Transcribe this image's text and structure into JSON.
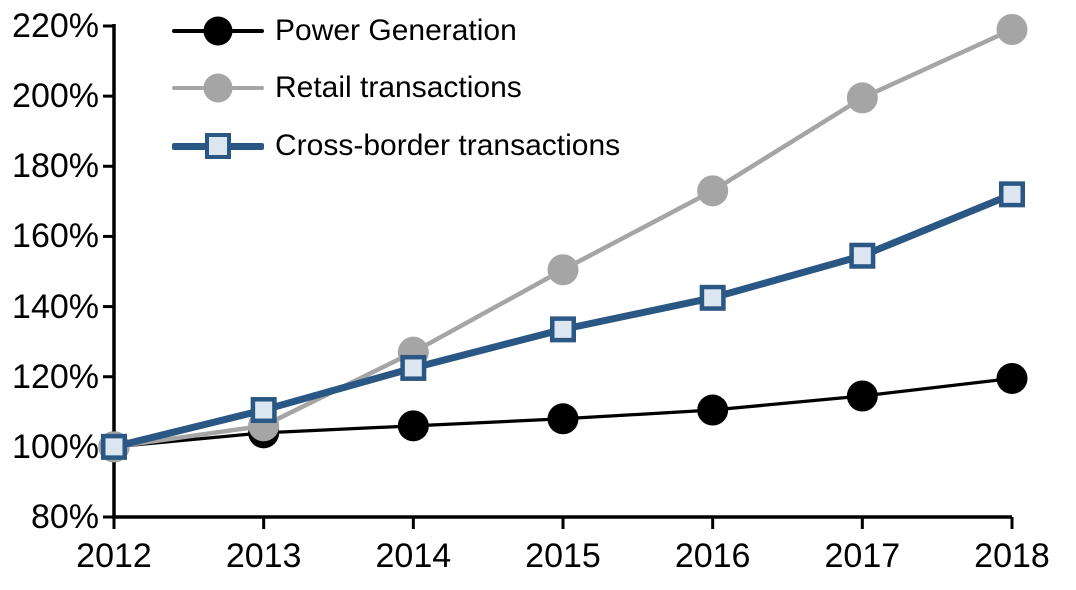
{
  "chart_data": {
    "type": "line",
    "title": "",
    "xlabel": "",
    "ylabel": "",
    "x": [
      2012,
      2013,
      2014,
      2015,
      2016,
      2017,
      2018
    ],
    "x_tick_labels": [
      "2012",
      "2013",
      "2014",
      "2015",
      "2016",
      "2017",
      "2018"
    ],
    "y_tick_values": [
      80,
      100,
      120,
      140,
      160,
      180,
      200,
      220
    ],
    "y_tick_labels": [
      "80%",
      "100%",
      "120%",
      "140%",
      "160%",
      "180%",
      "200%",
      "220%"
    ],
    "ylim": [
      80,
      220
    ],
    "grid": false,
    "legend_position": "top-left-inside",
    "axis_color": "#000000",
    "series": [
      {
        "name": "Power Generation",
        "color": "#000000",
        "marker": "circle",
        "marker_fill": "#000000",
        "line_width": 3.25,
        "values": [
          100,
          104,
          106,
          108,
          110.5,
          114.5,
          119.5
        ]
      },
      {
        "name": "Retail transactions",
        "color": "#A5A5A5",
        "marker": "circle",
        "marker_fill": "#A5A5A5",
        "line_width": 4.5,
        "values": [
          100,
          106,
          127,
          150.5,
          173,
          199.5,
          219
        ]
      },
      {
        "name": "Cross-border transactions",
        "color": "#2A5783",
        "marker": "square",
        "marker_fill": "#DCE6F1",
        "line_width": 7,
        "values": [
          100,
          110.5,
          122.5,
          133.5,
          142.5,
          154.5,
          172
        ]
      }
    ]
  }
}
